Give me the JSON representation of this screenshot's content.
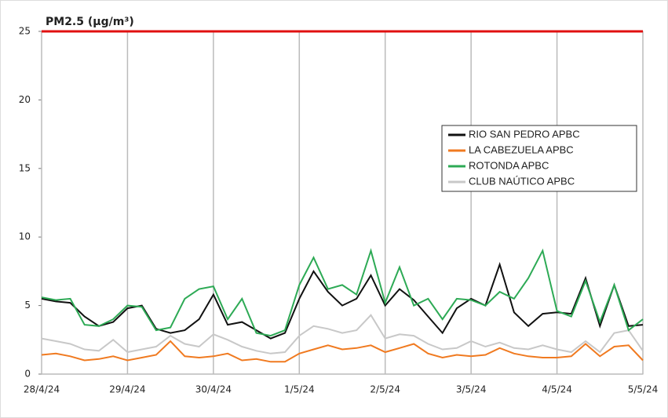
{
  "chart_data": {
    "type": "line",
    "title": "PM2.5 (µg/m³)",
    "categories": [
      "28/4/24",
      null,
      null,
      null,
      null,
      null,
      "29/4/24",
      null,
      null,
      null,
      null,
      null,
      "30/4/24",
      null,
      null,
      null,
      null,
      null,
      "1/5/24",
      null,
      null,
      null,
      null,
      null,
      "2/5/24",
      null,
      null,
      null,
      null,
      null,
      "3/5/24",
      null,
      null,
      null,
      null,
      null,
      "4/5/24",
      null,
      null,
      null,
      null,
      null,
      "5/5/24"
    ],
    "series": [
      {
        "name": "RIO SAN PEDRO APBC",
        "color": "#111111",
        "values": [
          5.5,
          5.3,
          5.2,
          4.2,
          3.5,
          3.8,
          4.8,
          5.0,
          3.3,
          3.0,
          3.2,
          4.0,
          5.8,
          3.6,
          3.8,
          3.2,
          2.6,
          3.0,
          5.5,
          7.5,
          6.0,
          5.0,
          5.5,
          7.2,
          5.0,
          6.2,
          5.4,
          4.2,
          3.0,
          4.8,
          5.5,
          5.0,
          8.0,
          4.5,
          3.5,
          4.4,
          4.5,
          4.4,
          7.0,
          3.5,
          6.5,
          3.5,
          3.6
        ]
      },
      {
        "name": "LA CABEZUELA  APBC",
        "color": "#f07a20",
        "values": [
          1.4,
          1.5,
          1.3,
          1.0,
          1.1,
          1.3,
          1.0,
          1.2,
          1.4,
          2.4,
          1.3,
          1.2,
          1.3,
          1.5,
          1.0,
          1.1,
          0.9,
          0.9,
          1.5,
          1.8,
          2.1,
          1.8,
          1.9,
          2.1,
          1.6,
          1.9,
          2.2,
          1.5,
          1.2,
          1.4,
          1.3,
          1.4,
          1.9,
          1.5,
          1.3,
          1.2,
          1.2,
          1.3,
          2.2,
          1.3,
          2.0,
          2.1,
          1.0
        ]
      },
      {
        "name": "ROTONDA  APBC",
        "color": "#2daa55",
        "values": [
          5.6,
          5.4,
          5.5,
          3.6,
          3.5,
          4.0,
          5.0,
          4.9,
          3.2,
          3.4,
          5.5,
          6.2,
          6.4,
          4.0,
          5.5,
          3.0,
          2.8,
          3.2,
          6.5,
          8.5,
          6.2,
          6.5,
          5.8,
          9.0,
          5.2,
          7.8,
          5.0,
          5.5,
          4.0,
          5.5,
          5.4,
          5.0,
          6.0,
          5.5,
          7.0,
          9.0,
          4.6,
          4.2,
          6.8,
          3.8,
          6.5,
          3.2,
          4.0
        ]
      },
      {
        "name": "CLUB NAÚTICO  APBC",
        "color": "#c8c8c8",
        "values": [
          2.6,
          2.4,
          2.2,
          1.8,
          1.7,
          2.5,
          1.6,
          1.8,
          2.0,
          2.8,
          2.2,
          2.0,
          2.9,
          2.5,
          2.0,
          1.7,
          1.5,
          1.6,
          2.8,
          3.5,
          3.3,
          3.0,
          3.2,
          4.3,
          2.6,
          2.9,
          2.8,
          2.2,
          1.8,
          1.9,
          2.4,
          2.0,
          2.3,
          1.9,
          1.8,
          2.1,
          1.8,
          1.6,
          2.4,
          1.6,
          3.0,
          3.2,
          1.7
        ]
      }
    ],
    "limit": {
      "value": 25,
      "color": "#e01010"
    },
    "ylim": [
      0,
      25
    ],
    "yticks": [
      0,
      5,
      10,
      15,
      20,
      25
    ],
    "grid": true
  }
}
